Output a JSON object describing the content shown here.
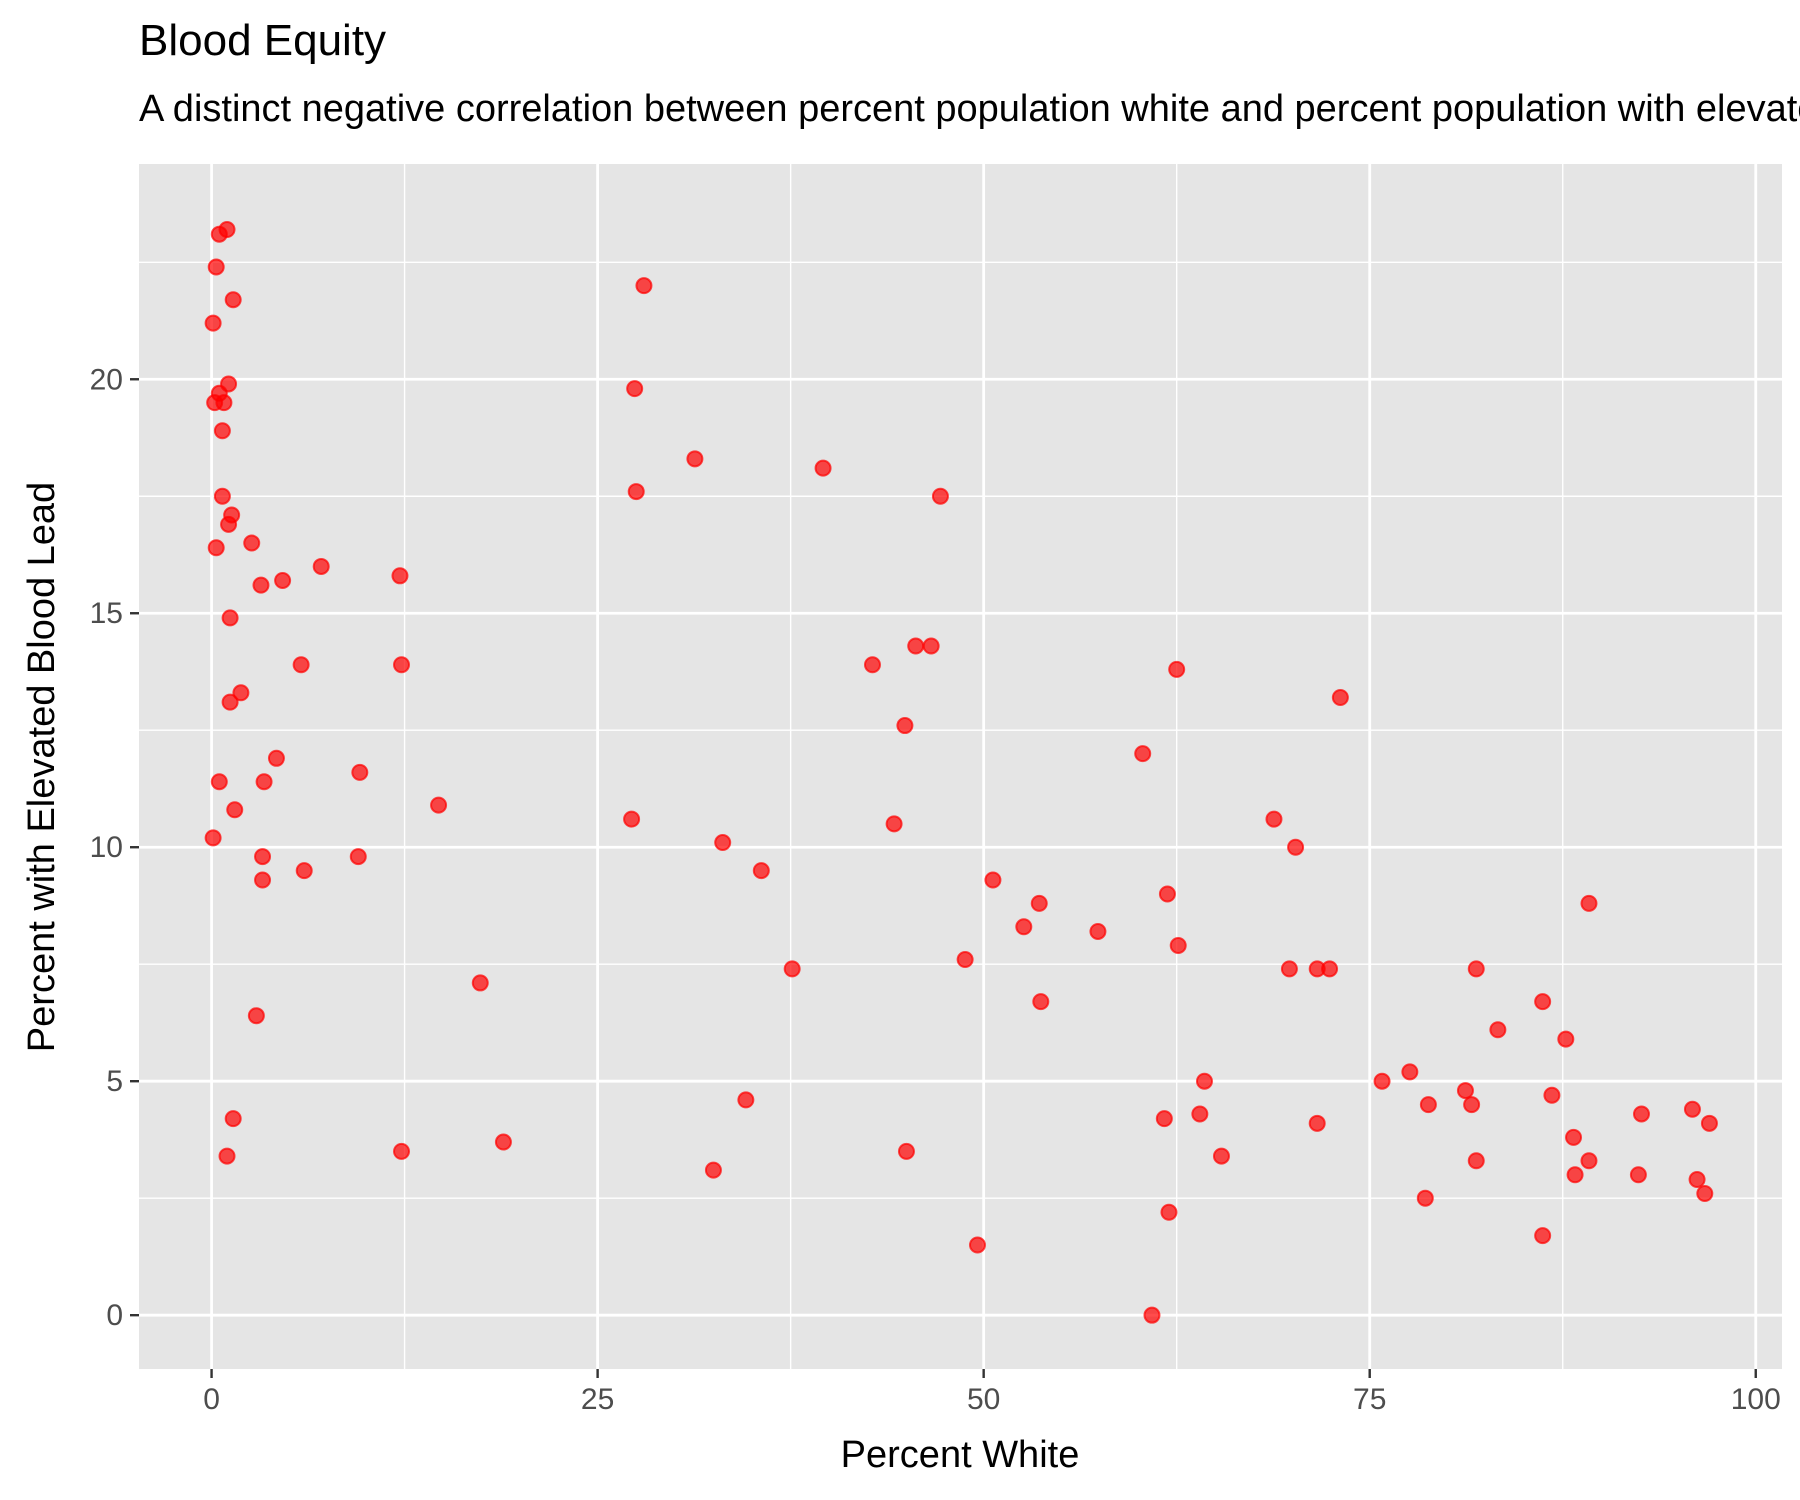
{
  "chart_data": {
    "type": "scatter",
    "title": "Blood Equity",
    "subtitle": "A distinct negative correlation between percent population white and percent population with elevated blood lead",
    "xlabel": "Percent White",
    "ylabel": "Percent with Elevated Blood Lead",
    "xlim": [
      -4.7,
      101.7
    ],
    "ylim": [
      -1.15,
      24.6
    ],
    "xticks": [
      0,
      25,
      50,
      75,
      100
    ],
    "yticks": [
      0,
      5,
      10,
      15,
      20
    ],
    "grid": true,
    "panel_background": "#e5e5e5",
    "point_color": "#ff0000",
    "point_alpha": 0.7,
    "legend": "none",
    "points": [
      [
        0.1,
        21.2
      ],
      [
        0.5,
        23.1
      ],
      [
        1.0,
        23.2
      ],
      [
        0.3,
        22.4
      ],
      [
        1.4,
        21.7
      ],
      [
        0.5,
        19.7
      ],
      [
        0.2,
        19.5
      ],
      [
        0.8,
        19.5
      ],
      [
        1.1,
        19.9
      ],
      [
        0.7,
        18.9
      ],
      [
        0.7,
        17.5
      ],
      [
        1.3,
        17.1
      ],
      [
        1.1,
        16.9
      ],
      [
        0.3,
        16.4
      ],
      [
        2.6,
        16.5
      ],
      [
        3.2,
        15.6
      ],
      [
        4.6,
        15.7
      ],
      [
        7.1,
        16.0
      ],
      [
        12.2,
        15.8
      ],
      [
        1.2,
        14.9
      ],
      [
        5.8,
        13.9
      ],
      [
        12.3,
        13.9
      ],
      [
        1.9,
        13.3
      ],
      [
        1.2,
        13.1
      ],
      [
        4.2,
        11.9
      ],
      [
        9.6,
        11.6
      ],
      [
        0.5,
        11.4
      ],
      [
        3.4,
        11.4
      ],
      [
        14.7,
        10.9
      ],
      [
        1.5,
        10.8
      ],
      [
        0.1,
        10.2
      ],
      [
        3.3,
        9.8
      ],
      [
        9.5,
        9.8
      ],
      [
        6.0,
        9.5
      ],
      [
        3.3,
        9.3
      ],
      [
        17.4,
        7.1
      ],
      [
        2.9,
        6.4
      ],
      [
        1.4,
        4.2
      ],
      [
        1.0,
        3.4
      ],
      [
        12.3,
        3.5
      ],
      [
        18.9,
        3.7
      ],
      [
        28.0,
        22.0
      ],
      [
        27.4,
        19.8
      ],
      [
        31.3,
        18.3
      ],
      [
        27.5,
        17.6
      ],
      [
        39.6,
        18.1
      ],
      [
        47.2,
        17.5
      ],
      [
        46.6,
        14.3
      ],
      [
        45.6,
        14.3
      ],
      [
        42.8,
        13.9
      ],
      [
        44.9,
        12.6
      ],
      [
        27.2,
        10.6
      ],
      [
        44.2,
        10.5
      ],
      [
        33.1,
        10.1
      ],
      [
        35.6,
        9.5
      ],
      [
        37.6,
        7.4
      ],
      [
        34.6,
        4.6
      ],
      [
        32.5,
        3.1
      ],
      [
        45.0,
        3.5
      ],
      [
        50.6,
        9.3
      ],
      [
        53.6,
        8.8
      ],
      [
        52.6,
        8.3
      ],
      [
        57.4,
        8.2
      ],
      [
        48.8,
        7.6
      ],
      [
        53.7,
        6.7
      ],
      [
        49.6,
        1.5
      ],
      [
        62.5,
        13.8
      ],
      [
        60.3,
        12.0
      ],
      [
        61.9,
        9.0
      ],
      [
        62.6,
        7.9
      ],
      [
        64.3,
        5.0
      ],
      [
        61.7,
        4.2
      ],
      [
        64.0,
        4.3
      ],
      [
        65.4,
        3.4
      ],
      [
        62.0,
        2.2
      ],
      [
        60.9,
        0.0
      ],
      [
        73.1,
        13.2
      ],
      [
        68.8,
        10.6
      ],
      [
        70.2,
        10.0
      ],
      [
        69.8,
        7.4
      ],
      [
        71.6,
        7.4
      ],
      [
        72.4,
        7.4
      ],
      [
        71.6,
        4.1
      ],
      [
        75.8,
        5.0
      ],
      [
        77.6,
        5.2
      ],
      [
        78.8,
        4.5
      ],
      [
        78.6,
        2.5
      ],
      [
        81.2,
        4.8
      ],
      [
        81.6,
        4.5
      ],
      [
        81.9,
        7.4
      ],
      [
        81.9,
        3.3
      ],
      [
        83.3,
        6.1
      ],
      [
        86.2,
        6.7
      ],
      [
        86.8,
        4.7
      ],
      [
        87.7,
        5.9
      ],
      [
        89.2,
        8.8
      ],
      [
        88.2,
        3.8
      ],
      [
        89.2,
        3.3
      ],
      [
        88.3,
        3.0
      ],
      [
        86.2,
        1.7
      ],
      [
        92.6,
        4.3
      ],
      [
        92.4,
        3.0
      ],
      [
        95.9,
        4.4
      ],
      [
        97.0,
        4.1
      ],
      [
        96.2,
        2.9
      ],
      [
        96.7,
        2.6
      ]
    ]
  }
}
